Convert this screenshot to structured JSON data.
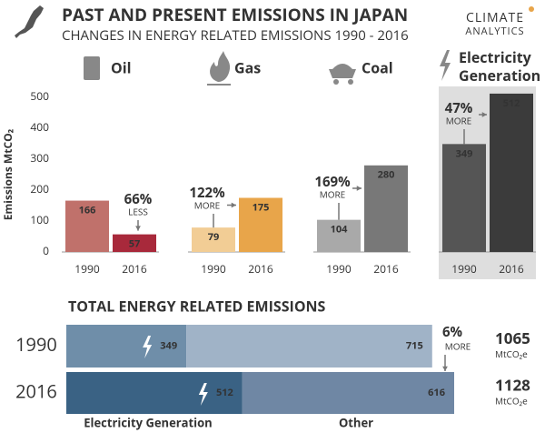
{
  "header": {
    "title": "PAST AND PRESENT EMISSIONS IN JAPAN",
    "subtitle": "CHANGES IN ENERGY RELATED EMISSIONS 1990 - 2016",
    "logo": [
      "CLIMATE",
      "ANALYTICS"
    ]
  },
  "chart_data": [
    {
      "type": "bar",
      "title": "Oil",
      "y_label": "Emissions MtCO₂",
      "categories": [
        "1990",
        "2016"
      ],
      "values": [
        166,
        57
      ],
      "colors": [
        "#c0716b",
        "#a8293b"
      ],
      "ylim": [
        0,
        500
      ],
      "yticks": [
        0,
        100,
        200,
        300,
        400,
        500
      ],
      "change": "66%",
      "change_label": "LESS"
    },
    {
      "type": "bar",
      "title": "Gas",
      "categories": [
        "1990",
        "2016"
      ],
      "values": [
        79,
        175
      ],
      "colors": [
        "#f2cd95",
        "#e8a54a"
      ],
      "ylim": [
        0,
        500
      ],
      "change": "122%",
      "change_label": "MORE"
    },
    {
      "type": "bar",
      "title": "Coal",
      "categories": [
        "1990",
        "2016"
      ],
      "values": [
        104,
        280
      ],
      "colors": [
        "#a9a9a9",
        "#787878"
      ],
      "ylim": [
        0,
        500
      ],
      "change": "169%",
      "change_label": "MORE"
    },
    {
      "type": "bar",
      "title": "Electricity Generation",
      "categories": [
        "1990",
        "2016"
      ],
      "values": [
        349,
        512
      ],
      "colors": [
        "#555555",
        "#3b3b3b"
      ],
      "ylim": [
        0,
        500
      ],
      "background": "#dedede",
      "change": "47%",
      "change_label": "MORE"
    },
    {
      "type": "hbar_stacked",
      "title": "TOTAL ENERGY RELATED EMISSIONS",
      "categories": [
        "1990",
        "2016"
      ],
      "xlim": [
        0,
        1128
      ],
      "series": [
        {
          "name": "Electricity Generation",
          "colors": [
            "#6f8ea9",
            "#3a6284"
          ],
          "values": [
            349,
            512
          ]
        },
        {
          "name": "Other",
          "colors": [
            "#a0b3c7",
            "#6f87a4"
          ],
          "values": [
            715,
            616
          ]
        }
      ],
      "totals": [
        1065,
        1128
      ],
      "total_unit": "MtCO₂e",
      "change": "6%",
      "change_label": "MORE"
    }
  ]
}
